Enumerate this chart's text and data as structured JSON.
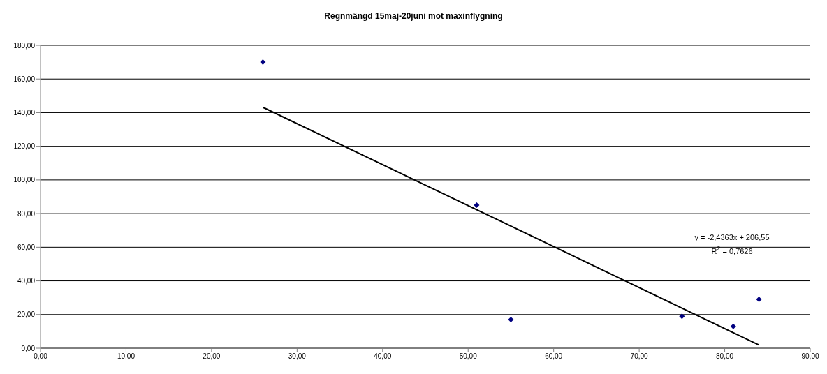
{
  "chart_data": {
    "type": "scatter",
    "title": "Regnmängd 15maj-20juni mot maxinflygning",
    "series": [
      {
        "color": "#000080",
        "marker": "diamond",
        "x": [
          26,
          51,
          55,
          75,
          81,
          84
        ],
        "values": [
          170,
          85,
          17,
          19,
          13,
          29
        ]
      },
      {
        "type": "line",
        "color": "#000000",
        "marker": "none",
        "x": [
          26,
          84
        ],
        "values": [
          143.2,
          1.9
        ]
      }
    ],
    "xlim": [
      0,
      90
    ],
    "xticks": [
      {
        "value": 0,
        "label": "0,00"
      },
      {
        "value": 10,
        "label": "10,00"
      },
      {
        "value": 20,
        "label": "20,00"
      },
      {
        "value": 30,
        "label": "30,00"
      },
      {
        "value": 40,
        "label": "40,00"
      },
      {
        "value": 50,
        "label": "50,00"
      },
      {
        "value": 60,
        "label": "60,00"
      },
      {
        "value": 70,
        "label": "70,00"
      },
      {
        "value": 80,
        "label": "80,00"
      },
      {
        "value": 90,
        "label": "90,00"
      }
    ],
    "ylim": [
      0,
      180
    ],
    "yticks": [
      {
        "value": 0,
        "label": "0,00"
      },
      {
        "value": 20,
        "label": "20,00"
      },
      {
        "value": 40,
        "label": "40,00"
      },
      {
        "value": 60,
        "label": "60,00"
      },
      {
        "value": 80,
        "label": "80,00"
      },
      {
        "value": 100,
        "label": "100,00"
      },
      {
        "value": 120,
        "label": "120,00"
      },
      {
        "value": 140,
        "label": "140,00"
      },
      {
        "value": 160,
        "label": "160,00"
      },
      {
        "value": 180,
        "label": "180,00"
      }
    ],
    "grid": "y",
    "annotations": [
      "y = -2,4363x + 206,55",
      "R$^{2}$ = 0,7626"
    ]
  }
}
